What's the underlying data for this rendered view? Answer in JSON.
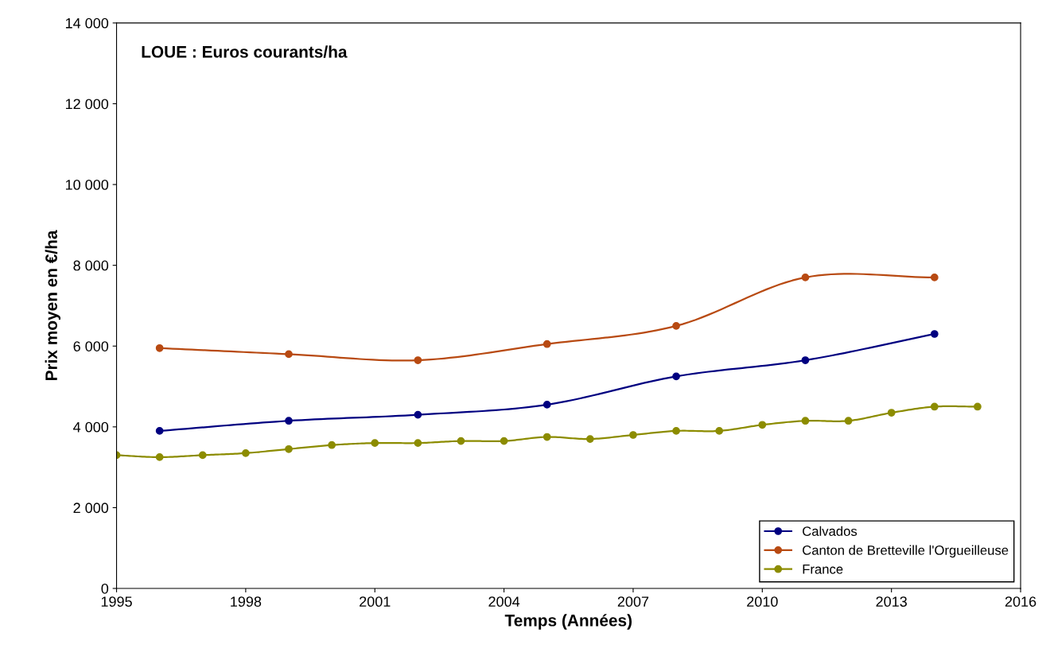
{
  "chart_data": {
    "type": "line",
    "title": "LOUE : Euros courants/ha",
    "xlabel": "Temps (Années)",
    "ylabel": "Prix moyen en €/ha",
    "series": [
      {
        "name": "Calvados",
        "color": "#000080",
        "x": [
          1996,
          1999,
          2002,
          2005,
          2008,
          2011,
          2014
        ],
        "values": [
          3900,
          4150,
          4300,
          4550,
          5250,
          5650,
          6300
        ]
      },
      {
        "name": "Canton de Bretteville l'Orgueilleuse",
        "color": "#b84a12",
        "x": [
          1996,
          1999,
          2002,
          2005,
          2008,
          2011,
          2014
        ],
        "values": [
          5950,
          5800,
          5650,
          6050,
          6500,
          7700,
          7700
        ]
      },
      {
        "name": "France",
        "color": "#8c8c00",
        "x": [
          1995,
          1996,
          1997,
          1998,
          1999,
          2000,
          2001,
          2002,
          2003,
          2004,
          2005,
          2006,
          2007,
          2008,
          2009,
          2010,
          2011,
          2012,
          2013,
          2014,
          2015
        ],
        "values": [
          3300,
          3250,
          3300,
          3350,
          3450,
          3550,
          3600,
          3600,
          3650,
          3650,
          3750,
          3700,
          3800,
          3900,
          3900,
          4050,
          4150,
          4150,
          4350,
          4500,
          4500
        ]
      }
    ],
    "xlim": [
      1995,
      2016
    ],
    "xticks": [
      1995,
      1998,
      2001,
      2004,
      2007,
      2010,
      2013,
      2016
    ],
    "ylim": [
      0,
      14000
    ],
    "yticks": [
      0,
      {
        "value": 2000,
        "label": "2 000"
      },
      {
        "value": 4000,
        "label": "4 000"
      },
      {
        "value": 6000,
        "label": "6 000"
      },
      {
        "value": 8000,
        "label": "8 000"
      },
      {
        "value": 10000,
        "label": "10 000"
      },
      {
        "value": 12000,
        "label": "12 000"
      },
      {
        "value": 14000,
        "label": "14 000"
      }
    ],
    "grid": false,
    "legend": "bottom right",
    "marker": "circle",
    "line_style": "solid"
  }
}
